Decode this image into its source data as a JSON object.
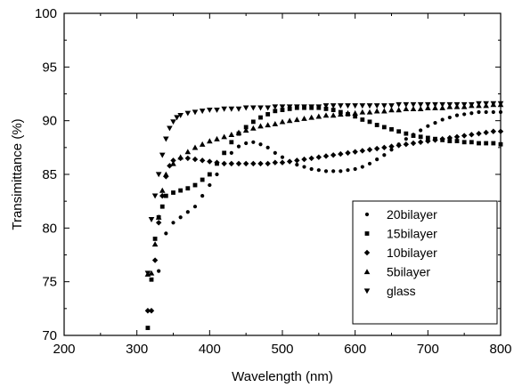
{
  "chart_data": {
    "type": "scatter",
    "xlabel": "Wavelength (nm)",
    "ylabel": "Transimittance (%)",
    "xlim": [
      200,
      800
    ],
    "ylim": [
      70,
      100
    ],
    "x_ticks": [
      200,
      300,
      400,
      500,
      600,
      700,
      800
    ],
    "y_ticks": [
      70,
      75,
      80,
      85,
      90,
      95,
      100
    ],
    "grid": false,
    "legend_position": "bottom-right",
    "series": [
      {
        "name": "20bilayer",
        "marker": "circle",
        "color": "#000000",
        "points": [
          [
            330,
            76
          ],
          [
            340,
            79.5
          ],
          [
            350,
            80.5
          ],
          [
            360,
            81
          ],
          [
            370,
            81.5
          ],
          [
            380,
            82
          ],
          [
            390,
            83
          ],
          [
            400,
            84
          ],
          [
            410,
            85
          ],
          [
            420,
            86
          ],
          [
            430,
            87
          ],
          [
            440,
            87.6
          ],
          [
            450,
            87.9
          ],
          [
            460,
            88
          ],
          [
            470,
            87.8
          ],
          [
            480,
            87.5
          ],
          [
            490,
            87
          ],
          [
            500,
            86.6
          ],
          [
            510,
            86.2
          ],
          [
            520,
            85.9
          ],
          [
            530,
            85.7
          ],
          [
            540,
            85.5
          ],
          [
            550,
            85.4
          ],
          [
            560,
            85.3
          ],
          [
            570,
            85.3
          ],
          [
            580,
            85.3
          ],
          [
            590,
            85.4
          ],
          [
            600,
            85.5
          ],
          [
            610,
            85.7
          ],
          [
            620,
            86
          ],
          [
            630,
            86.4
          ],
          [
            640,
            86.8
          ],
          [
            650,
            87.3
          ],
          [
            660,
            87.8
          ],
          [
            670,
            88.3
          ],
          [
            680,
            88.7
          ],
          [
            690,
            89.1
          ],
          [
            700,
            89.5
          ],
          [
            710,
            89.8
          ],
          [
            720,
            90.1
          ],
          [
            730,
            90.3
          ],
          [
            740,
            90.5
          ],
          [
            750,
            90.6
          ],
          [
            760,
            90.7
          ],
          [
            770,
            90.8
          ],
          [
            780,
            90.8
          ],
          [
            790,
            90.8
          ],
          [
            800,
            90.8
          ]
        ]
      },
      {
        "name": "15bilayer",
        "marker": "square",
        "color": "#000000",
        "points": [
          [
            315,
            70.7
          ],
          [
            320,
            75.2
          ],
          [
            325,
            79
          ],
          [
            330,
            81
          ],
          [
            335,
            82
          ],
          [
            340,
            83
          ],
          [
            350,
            83.3
          ],
          [
            360,
            83.5
          ],
          [
            370,
            83.7
          ],
          [
            380,
            84
          ],
          [
            390,
            84.5
          ],
          [
            400,
            85
          ],
          [
            410,
            86
          ],
          [
            420,
            87
          ],
          [
            430,
            88
          ],
          [
            440,
            88.8
          ],
          [
            450,
            89.4
          ],
          [
            460,
            89.9
          ],
          [
            470,
            90.3
          ],
          [
            480,
            90.6
          ],
          [
            490,
            90.9
          ],
          [
            500,
            91
          ],
          [
            510,
            91.1
          ],
          [
            520,
            91.2
          ],
          [
            530,
            91.2
          ],
          [
            540,
            91.2
          ],
          [
            550,
            91.2
          ],
          [
            560,
            91.1
          ],
          [
            570,
            91
          ],
          [
            580,
            90.8
          ],
          [
            590,
            90.6
          ],
          [
            600,
            90.4
          ],
          [
            610,
            90.1
          ],
          [
            620,
            89.9
          ],
          [
            630,
            89.6
          ],
          [
            640,
            89.4
          ],
          [
            650,
            89.2
          ],
          [
            660,
            89
          ],
          [
            670,
            88.8
          ],
          [
            680,
            88.6
          ],
          [
            690,
            88.5
          ],
          [
            700,
            88.4
          ],
          [
            710,
            88.3
          ],
          [
            720,
            88.2
          ],
          [
            730,
            88.1
          ],
          [
            740,
            88.1
          ],
          [
            750,
            88
          ],
          [
            760,
            88
          ],
          [
            770,
            87.9
          ],
          [
            780,
            87.9
          ],
          [
            790,
            87.9
          ],
          [
            800,
            87.8
          ]
        ]
      },
      {
        "name": "10bilayer",
        "marker": "diamond",
        "color": "#000000",
        "points": [
          [
            315,
            72.3
          ],
          [
            320,
            72.3
          ],
          [
            325,
            77
          ],
          [
            330,
            80.5
          ],
          [
            335,
            83
          ],
          [
            340,
            84.8
          ],
          [
            345,
            85.8
          ],
          [
            350,
            86.3
          ],
          [
            360,
            86.5
          ],
          [
            370,
            86.5
          ],
          [
            380,
            86.4
          ],
          [
            390,
            86.3
          ],
          [
            400,
            86.2
          ],
          [
            410,
            86.1
          ],
          [
            420,
            86
          ],
          [
            430,
            86
          ],
          [
            440,
            86
          ],
          [
            450,
            86
          ],
          [
            460,
            86
          ],
          [
            470,
            86
          ],
          [
            480,
            86
          ],
          [
            490,
            86.1
          ],
          [
            500,
            86.1
          ],
          [
            510,
            86.2
          ],
          [
            520,
            86.3
          ],
          [
            530,
            86.4
          ],
          [
            540,
            86.5
          ],
          [
            550,
            86.6
          ],
          [
            560,
            86.7
          ],
          [
            570,
            86.8
          ],
          [
            580,
            86.9
          ],
          [
            590,
            87
          ],
          [
            600,
            87.1
          ],
          [
            610,
            87.2
          ],
          [
            620,
            87.3
          ],
          [
            630,
            87.4
          ],
          [
            640,
            87.5
          ],
          [
            650,
            87.6
          ],
          [
            660,
            87.7
          ],
          [
            670,
            87.8
          ],
          [
            680,
            87.9
          ],
          [
            690,
            88
          ],
          [
            700,
            88.1
          ],
          [
            710,
            88.2
          ],
          [
            720,
            88.3
          ],
          [
            730,
            88.4
          ],
          [
            740,
            88.5
          ],
          [
            750,
            88.6
          ],
          [
            760,
            88.7
          ],
          [
            770,
            88.8
          ],
          [
            780,
            88.9
          ],
          [
            790,
            89
          ],
          [
            800,
            89
          ]
        ]
      },
      {
        "name": "5bilayer",
        "marker": "triangle-up",
        "color": "#000000",
        "points": [
          [
            315,
            75.7
          ],
          [
            320,
            75.8
          ],
          [
            325,
            78.5
          ],
          [
            330,
            81
          ],
          [
            335,
            83.5
          ],
          [
            340,
            85
          ],
          [
            350,
            86
          ],
          [
            360,
            86.6
          ],
          [
            370,
            87.1
          ],
          [
            380,
            87.5
          ],
          [
            390,
            87.8
          ],
          [
            400,
            88.1
          ],
          [
            410,
            88.3
          ],
          [
            420,
            88.5
          ],
          [
            430,
            88.7
          ],
          [
            440,
            88.9
          ],
          [
            450,
            89.1
          ],
          [
            460,
            89.3
          ],
          [
            470,
            89.5
          ],
          [
            480,
            89.6
          ],
          [
            490,
            89.7
          ],
          [
            500,
            89.9
          ],
          [
            510,
            90
          ],
          [
            520,
            90.1
          ],
          [
            530,
            90.2
          ],
          [
            540,
            90.3
          ],
          [
            550,
            90.4
          ],
          [
            560,
            90.5
          ],
          [
            570,
            90.5
          ],
          [
            580,
            90.6
          ],
          [
            590,
            90.7
          ],
          [
            600,
            90.7
          ],
          [
            610,
            90.8
          ],
          [
            620,
            90.8
          ],
          [
            630,
            90.9
          ],
          [
            640,
            90.9
          ],
          [
            650,
            91
          ],
          [
            660,
            91
          ],
          [
            670,
            91.1
          ],
          [
            680,
            91.1
          ],
          [
            690,
            91.1
          ],
          [
            700,
            91.2
          ],
          [
            710,
            91.2
          ],
          [
            720,
            91.2
          ],
          [
            730,
            91.3
          ],
          [
            740,
            91.3
          ],
          [
            750,
            91.3
          ],
          [
            760,
            91.4
          ],
          [
            770,
            91.4
          ],
          [
            780,
            91.4
          ],
          [
            790,
            91.5
          ],
          [
            800,
            91.5
          ]
        ]
      },
      {
        "name": "glass",
        "marker": "triangle-down",
        "color": "#000000",
        "points": [
          [
            315,
            75.8
          ],
          [
            320,
            80.8
          ],
          [
            325,
            83
          ],
          [
            330,
            85
          ],
          [
            335,
            86.8
          ],
          [
            340,
            88.3
          ],
          [
            345,
            89.3
          ],
          [
            350,
            89.9
          ],
          [
            355,
            90.3
          ],
          [
            360,
            90.5
          ],
          [
            370,
            90.7
          ],
          [
            380,
            90.8
          ],
          [
            390,
            90.9
          ],
          [
            400,
            91
          ],
          [
            410,
            91
          ],
          [
            420,
            91.1
          ],
          [
            430,
            91.1
          ],
          [
            440,
            91.1
          ],
          [
            450,
            91.2
          ],
          [
            460,
            91.2
          ],
          [
            470,
            91.2
          ],
          [
            480,
            91.2
          ],
          [
            490,
            91.3
          ],
          [
            500,
            91.3
          ],
          [
            510,
            91.3
          ],
          [
            520,
            91.3
          ],
          [
            530,
            91.3
          ],
          [
            540,
            91.3
          ],
          [
            550,
            91.3
          ],
          [
            560,
            91.4
          ],
          [
            570,
            91.4
          ],
          [
            580,
            91.4
          ],
          [
            590,
            91.4
          ],
          [
            600,
            91.4
          ],
          [
            610,
            91.4
          ],
          [
            620,
            91.4
          ],
          [
            630,
            91.4
          ],
          [
            640,
            91.4
          ],
          [
            650,
            91.4
          ],
          [
            660,
            91.5
          ],
          [
            670,
            91.5
          ],
          [
            680,
            91.5
          ],
          [
            690,
            91.5
          ],
          [
            700,
            91.5
          ],
          [
            710,
            91.5
          ],
          [
            720,
            91.5
          ],
          [
            730,
            91.5
          ],
          [
            740,
            91.5
          ],
          [
            750,
            91.5
          ],
          [
            760,
            91.5
          ],
          [
            770,
            91.6
          ],
          [
            780,
            91.6
          ],
          [
            790,
            91.6
          ],
          [
            800,
            91.6
          ]
        ]
      }
    ]
  }
}
